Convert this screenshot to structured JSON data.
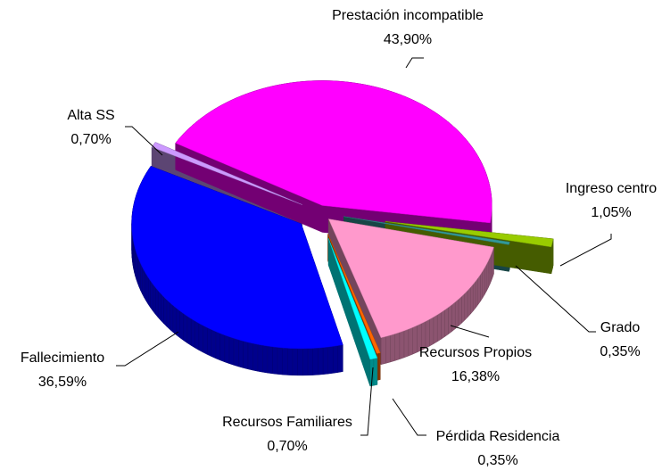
{
  "chart_data": {
    "type": "pie",
    "categories": [
      "Prestación incompatible",
      "Ingreso centro",
      "Grado",
      "Recursos Propios",
      "Pérdida Residencia",
      "Recursos Familiares",
      "Fallecimiento",
      "Alta SS"
    ],
    "values": [
      43.9,
      1.05,
      0.35,
      16.38,
      0.35,
      0.7,
      36.59,
      0.7
    ],
    "value_labels": [
      "43,90%",
      "1,05%",
      "0,35%",
      "16,38%",
      "0,35%",
      "0,70%",
      "36,59%",
      "0,70%"
    ],
    "colors": [
      "#ff00ff",
      "#99cc00",
      "#339999",
      "#ff99cc",
      "#ff6600",
      "#00ffff",
      "#0000ff",
      "#cc99ff"
    ]
  }
}
